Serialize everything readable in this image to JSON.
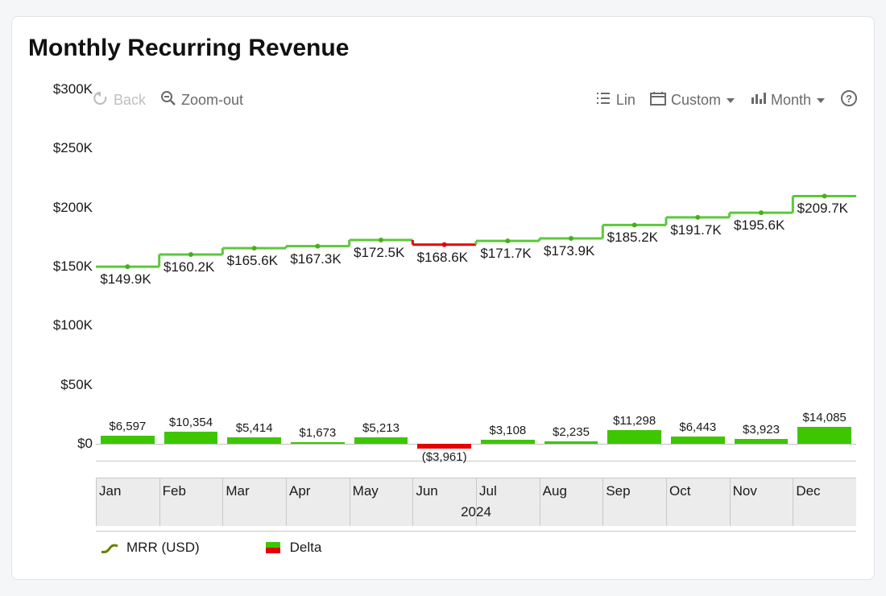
{
  "title": "Monthly Recurring Revenue",
  "toolbar": {
    "back_label": "Back",
    "zoom_out_label": "Zoom-out",
    "lin_label": "Lin",
    "custom_label": "Custom",
    "month_label": "Month"
  },
  "chart": {
    "type": "mrr-waterfall",
    "background_color": "#ffffff",
    "page_background_color": "#f5f6f8",
    "axis_color": "#bfbfbf",
    "label_color": "#1a1a1a",
    "label_fontsize": 17,
    "delta_label_fontsize": 15,
    "pos_color": "#3ec600",
    "neg_color": "#e60000",
    "line_pos_color": "#5cc83c",
    "line_neg_color": "#e60000",
    "mrr_legend_color": "#6b7f00",
    "bar_width_ratio": 0.85,
    "line_width": 3,
    "dot_radius": 3,
    "ylim": [
      -15000,
      300000
    ],
    "ytick_vals": [
      0,
      50000,
      100000,
      150000,
      200000,
      250000,
      300000
    ],
    "ytick_labels": [
      "$0",
      "$50K",
      "$100K",
      "$150K",
      "$200K",
      "$250K",
      "$300K"
    ],
    "year": "2024",
    "months": [
      "Jan",
      "Feb",
      "Mar",
      "Apr",
      "May",
      "Jun",
      "Jul",
      "Aug",
      "Sep",
      "Oct",
      "Nov",
      "Dec"
    ],
    "mrr_values": [
      149900,
      160200,
      165600,
      167300,
      172500,
      168600,
      171700,
      173900,
      185200,
      191700,
      195600,
      209700
    ],
    "mrr_labels": [
      "$149.9K",
      "$160.2K",
      "$165.6K",
      "$167.3K",
      "$172.5K",
      "$168.6K",
      "$171.7K",
      "$173.9K",
      "$185.2K",
      "$191.7K",
      "$195.6K",
      "$209.7K"
    ],
    "delta_values": [
      6597,
      10354,
      5414,
      1673,
      5213,
      -3961,
      3108,
      2235,
      11298,
      6443,
      3923,
      14085
    ],
    "delta_labels": [
      "$6,597",
      "$10,354",
      "$5,414",
      "$1,673",
      "$5,213",
      "($3,961)",
      "$3,108",
      "$2,235",
      "$11,298",
      "$6,443",
      "$3,923",
      "$14,085"
    ]
  },
  "legend": {
    "mrr_label": "MRR (USD)",
    "delta_label": "Delta"
  }
}
